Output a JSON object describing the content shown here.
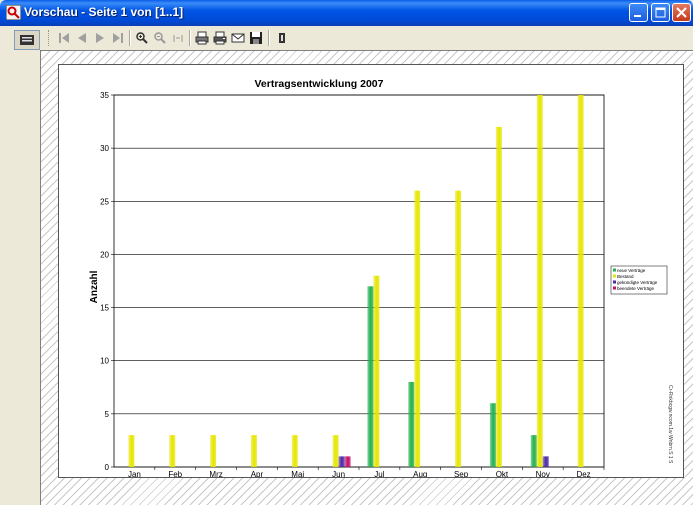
{
  "window": {
    "title": "Vorschau - Seite 1 von [1..1]"
  },
  "toolbar": {
    "buttons": [
      "first-page-icon",
      "prev-page-icon",
      "next-page-icon",
      "last-page-icon",
      "zoom-in-icon",
      "zoom-out-icon",
      "fit-icon",
      "print-icon",
      "print-setup-icon",
      "email-icon",
      "save-icon",
      "bookmark-icon"
    ]
  },
  "colors": {
    "neue_vertraege": "#23b14d",
    "bestand": "#e6e600",
    "gekuendigte": "#7a1fb8",
    "beendete": "#d01060"
  },
  "side_text": "Cr-Rnkbcgw.ncom.1w Wnbrn.S 1 S",
  "chart_data": {
    "type": "bar",
    "title": "Vertragsentwicklung 2007",
    "xlabel": "",
    "ylabel": "Anzahl",
    "ylim": [
      0,
      35
    ],
    "yticks": [
      0,
      5,
      10,
      15,
      20,
      25,
      30,
      35
    ],
    "grid": true,
    "legend_position": "right",
    "categories": [
      "Jan",
      "Feb",
      "Mrz",
      "Apr",
      "Mai",
      "Jun",
      "Jul",
      "Aug",
      "Sep",
      "Okt",
      "Nov",
      "Dez"
    ],
    "series": [
      {
        "name": "neue Verträge",
        "color": "#23b14d",
        "values": [
          0,
          0,
          0,
          0,
          0,
          0,
          17,
          8,
          0,
          6,
          3,
          0
        ]
      },
      {
        "name": "Bestand",
        "color": "#e6e600",
        "values": [
          3,
          3,
          3,
          3,
          3,
          3,
          18,
          26,
          26,
          32,
          35,
          35
        ]
      },
      {
        "name": "gekündigte Verträge",
        "color": "#4b2aa8",
        "values": [
          0,
          0,
          0,
          0,
          0,
          1,
          0,
          0,
          0,
          0,
          1,
          0
        ]
      },
      {
        "name": "beendete Verträge",
        "color": "#c4106a",
        "values": [
          0,
          0,
          0,
          0,
          0,
          1,
          0,
          0,
          0,
          0,
          0,
          0
        ]
      }
    ]
  }
}
